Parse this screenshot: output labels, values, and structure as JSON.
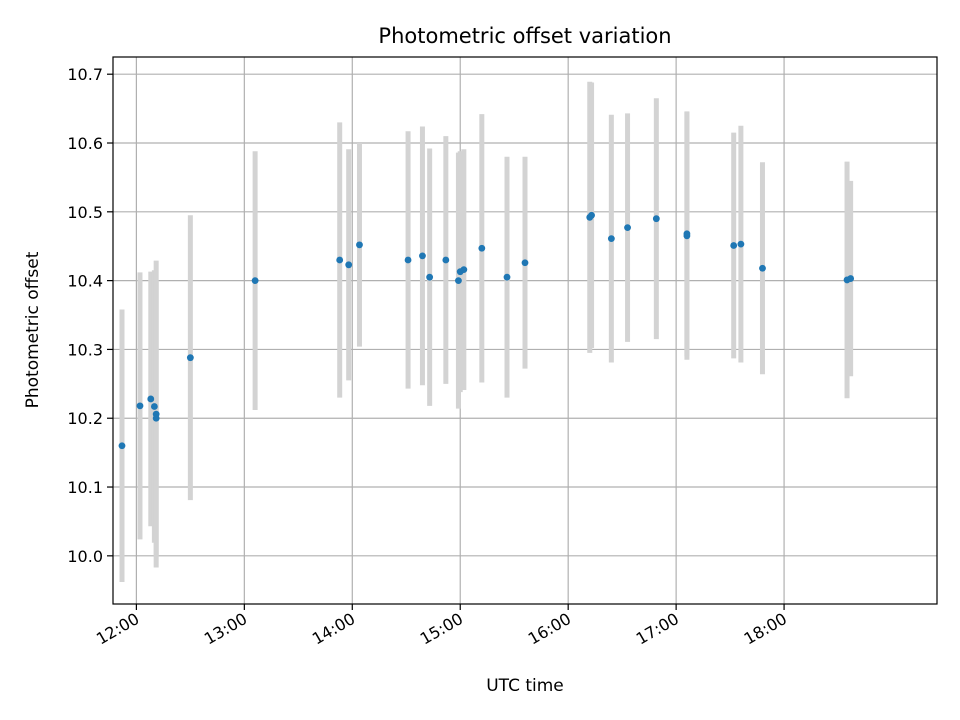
{
  "chart_data": {
    "type": "scatter",
    "title": "Photometric offset variation",
    "xlabel": "UTC time",
    "ylabel": "Photometric offset",
    "xlim": [
      "11:47",
      "19:25"
    ],
    "ylim": [
      9.93,
      10.725
    ],
    "grid": true,
    "x_ticks": [
      "12:00",
      "13:00",
      "14:00",
      "15:00",
      "16:00",
      "17:00",
      "18:00"
    ],
    "y_ticks": [
      10.0,
      10.1,
      10.2,
      10.3,
      10.4,
      10.5,
      10.6,
      10.7
    ],
    "y_tick_labels": [
      "10.0",
      "10.1",
      "10.2",
      "10.3",
      "10.4",
      "10.5",
      "10.6",
      "10.7"
    ],
    "colors": {
      "points": "#1f77b4",
      "error_bars": "#d3d3d3",
      "grid": "#b0b0b0"
    },
    "series": [
      {
        "x": [
          "11:52",
          "12:02",
          "12:08",
          "12:10",
          "12:11",
          "12:11",
          "12:30",
          "13:06",
          "13:53",
          "13:58",
          "14:04",
          "14:31",
          "14:39",
          "14:43",
          "14:52",
          "14:59",
          "15:00",
          "15:02",
          "15:12",
          "15:26",
          "15:36",
          "16:12",
          "16:13",
          "16:24",
          "16:33",
          "16:49",
          "17:06",
          "17:06",
          "17:32",
          "17:36",
          "17:48",
          "18:35",
          "18:37"
        ],
        "y": [
          10.16,
          10.218,
          10.228,
          10.217,
          10.206,
          10.2,
          10.288,
          10.4,
          10.43,
          10.423,
          10.452,
          10.43,
          10.436,
          10.405,
          10.43,
          10.4,
          10.413,
          10.416,
          10.447,
          10.405,
          10.426,
          10.492,
          10.495,
          10.461,
          10.477,
          10.49,
          10.465,
          10.468,
          10.451,
          10.453,
          10.418,
          10.401,
          10.403
        ],
        "yerr": [
          0.198,
          0.194,
          0.185,
          0.198,
          0.223,
          0.2,
          0.207,
          0.188,
          0.2,
          0.168,
          0.148,
          0.187,
          0.188,
          0.187,
          0.18,
          0.186,
          0.175,
          0.175,
          0.195,
          0.175,
          0.154,
          0.197,
          0.193,
          0.18,
          0.166,
          0.175,
          0.18,
          0.178,
          0.164,
          0.172,
          0.154,
          0.172,
          0.142
        ]
      }
    ]
  }
}
